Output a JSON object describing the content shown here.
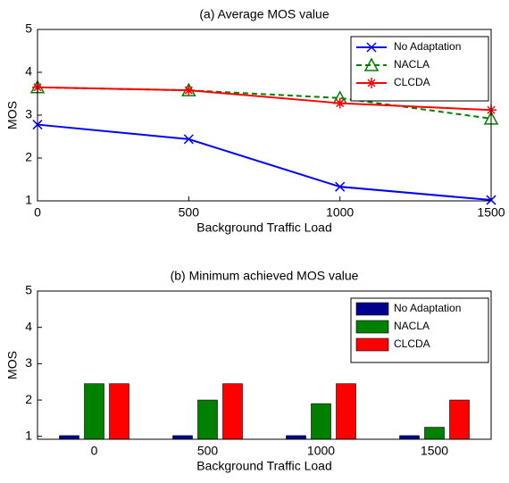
{
  "chart_data": [
    {
      "type": "line",
      "title": "(a) Average MOS value",
      "xlabel": "Background Traffic Load",
      "ylabel": "MOS",
      "x": [
        0,
        500,
        1000,
        1500
      ],
      "xlim": [
        0,
        1500
      ],
      "xticks": [
        0,
        500,
        1000,
        1500
      ],
      "ylim": [
        1,
        5
      ],
      "yticks": [
        1,
        2,
        3,
        4,
        5
      ],
      "legend": "upper right",
      "series": [
        {
          "name": "No Adaptation",
          "color": "#0000ff",
          "marker": "x",
          "line_style": "solid",
          "values": [
            2.78,
            2.44,
            1.33,
            1.02
          ]
        },
        {
          "name": "NACLA",
          "color": "#008000",
          "marker": "triangle",
          "line_style": "dashed",
          "values": [
            3.65,
            3.58,
            3.4,
            2.92
          ]
        },
        {
          "name": "CLCDA",
          "color": "#ff0000",
          "marker": "star",
          "line_style": "solid",
          "values": [
            3.65,
            3.58,
            3.28,
            3.12
          ]
        }
      ]
    },
    {
      "type": "bar",
      "title": "(b) Minimum achieved MOS value",
      "xlabel": "Background Traffic Load",
      "ylabel": "MOS",
      "categories": [
        "0",
        "500",
        "1000",
        "1500"
      ],
      "ylim": [
        0.92,
        5
      ],
      "yticks": [
        1,
        2,
        3,
        4,
        5
      ],
      "legend": "upper right",
      "series": [
        {
          "name": "No Adaptation",
          "color": "#00008f",
          "values": [
            1.02,
            1.02,
            1.02,
            1.02
          ]
        },
        {
          "name": "NACLA",
          "color": "#008000",
          "values": [
            2.45,
            2.0,
            1.9,
            1.25
          ]
        },
        {
          "name": "CLCDA",
          "color": "#ff0000",
          "values": [
            2.45,
            2.45,
            2.45,
            2.0
          ]
        }
      ]
    }
  ]
}
